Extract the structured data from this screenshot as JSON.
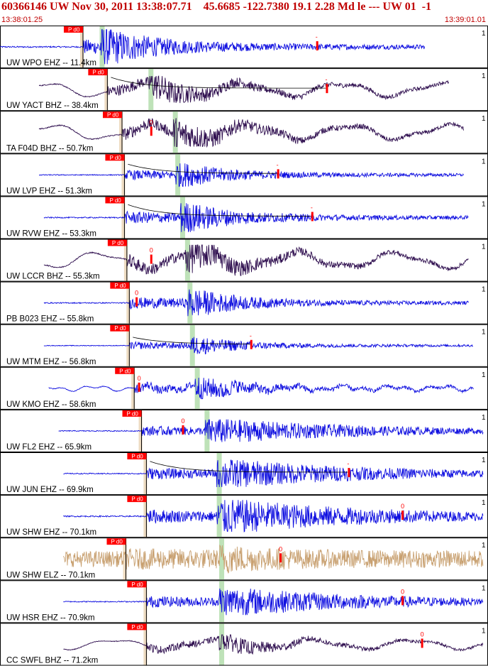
{
  "header": {
    "title": "60366146 UW Nov 30, 2011 13:38:07.71    45.6685 -122.7380 19.1 2.28 Md le --- UW 01  -1",
    "time_start": "13:38:01.25",
    "time_end": "13:39:01.01"
  },
  "colors": {
    "trace_ehz": "#1010e0",
    "trace_bhz": "#301050",
    "trace_elz": "#c8a070",
    "pick_flag": "#ff0000",
    "s_window": "#a8d8a0",
    "p_window": "#e0c090",
    "coda": "#000000",
    "panel_border": "#000000"
  },
  "pick_label": "P d0",
  "scale_mark": "1",
  "traces": [
    {
      "label": "UW WPO EHZ -- 11.4km",
      "type": "EHZ",
      "pick": 0.17,
      "s": 0.21,
      "marker": 0.65,
      "marker_label": "-",
      "start": 0.0,
      "end": 0.87,
      "style": "burst",
      "amp": 0.9,
      "coda": false
    },
    {
      "label": "UW YACT BHZ -- 38.4km",
      "type": "BHZ",
      "pick": 0.22,
      "s": 0.31,
      "marker": 0.67,
      "marker_label": "-",
      "start": 0.08,
      "end": 0.92,
      "style": "wave",
      "amp": 0.7,
      "coda": true
    },
    {
      "label": "TA F04D BHZ -- 50.7km",
      "type": "BHZ",
      "pick": 0.25,
      "s": 0.36,
      "marker": 0.31,
      "marker_label": "0",
      "start": 0.08,
      "end": 0.95,
      "style": "wave",
      "amp": 0.75,
      "coda": false
    },
    {
      "label": "UW LVP EHZ -- 51.3km",
      "type": "EHZ",
      "pick": 0.255,
      "s": 0.365,
      "marker": 0.57,
      "marker_label": "-",
      "start": 0.08,
      "end": 0.95,
      "style": "spike",
      "amp": 0.6,
      "coda": true
    },
    {
      "label": "UW RVW EHZ -- 53.3km",
      "type": "EHZ",
      "pick": 0.255,
      "s": 0.375,
      "marker": 0.64,
      "marker_label": "-",
      "start": 0.09,
      "end": 0.96,
      "style": "spike",
      "amp": 0.75,
      "coda": true
    },
    {
      "label": "UW LCCR BHZ -- 55.3km",
      "type": "BHZ",
      "pick": 0.26,
      "s": 0.385,
      "marker": 0.31,
      "marker_label": "0",
      "start": 0.09,
      "end": 0.96,
      "style": "wave",
      "amp": 0.8,
      "coda": false
    },
    {
      "label": "PB B023 EHZ -- 55.8km",
      "type": "EHZ",
      "pick": 0.265,
      "s": 0.39,
      "marker": 0.28,
      "marker_label": "0",
      "start": 0.09,
      "end": 0.96,
      "style": "burst2",
      "amp": 0.7,
      "coda": false
    },
    {
      "label": "UW MTM EHZ -- 56.8km",
      "type": "EHZ",
      "pick": 0.265,
      "s": 0.395,
      "marker": 0.515,
      "marker_label": "-",
      "start": 0.09,
      "end": 0.97,
      "style": "burst2",
      "amp": 0.45,
      "coda": true
    },
    {
      "label": "UW KMO EHZ -- 58.6km",
      "type": "EHZ",
      "pick": 0.275,
      "s": 0.405,
      "marker": 0.285,
      "marker_label": "0",
      "start": 0.1,
      "end": 0.97,
      "style": "wavy",
      "amp": 0.55,
      "coda": false
    },
    {
      "label": "UW FL2 EHZ -- 65.9km",
      "type": "EHZ",
      "pick": 0.29,
      "s": 0.425,
      "marker": 0.375,
      "marker_label": "0",
      "start": 0.12,
      "end": 0.99,
      "style": "long",
      "amp": 0.6,
      "coda": false
    },
    {
      "label": "UW JUN EHZ -- 69.9km",
      "type": "EHZ",
      "pick": 0.3,
      "s": 0.45,
      "marker": 0.715,
      "marker_label": "-",
      "start": 0.13,
      "end": 0.99,
      "style": "long",
      "amp": 0.7,
      "coda": true
    },
    {
      "label": "UW SHW EHZ -- 70.1km",
      "type": "EHZ",
      "pick": 0.3,
      "s": 0.45,
      "marker": 0.825,
      "marker_label": "0",
      "start": 0.13,
      "end": 0.99,
      "style": "long",
      "amp": 0.85,
      "coda": false
    },
    {
      "label": "UW SHW ELZ -- 70.1km",
      "type": "ELZ",
      "pick": 0.258,
      "s": 0.455,
      "marker": 0.575,
      "marker_label": "0",
      "start": 0.13,
      "end": 0.99,
      "style": "noise",
      "amp": 0.75,
      "coda": false
    },
    {
      "label": "UW HSR EHZ -- 70.9km",
      "type": "EHZ",
      "pick": 0.3,
      "s": 0.455,
      "marker": 0.825,
      "marker_label": "0",
      "start": 0.13,
      "end": 0.99,
      "style": "long",
      "amp": 0.7,
      "coda": false
    },
    {
      "label": "CC SWFL BHZ -- 71.2km",
      "type": "BHZ",
      "pick": 0.3,
      "s": 0.455,
      "marker": 0.865,
      "marker_label": "0",
      "start": 0.13,
      "end": 0.99,
      "style": "wave2",
      "amp": 0.5,
      "coda": false
    }
  ]
}
